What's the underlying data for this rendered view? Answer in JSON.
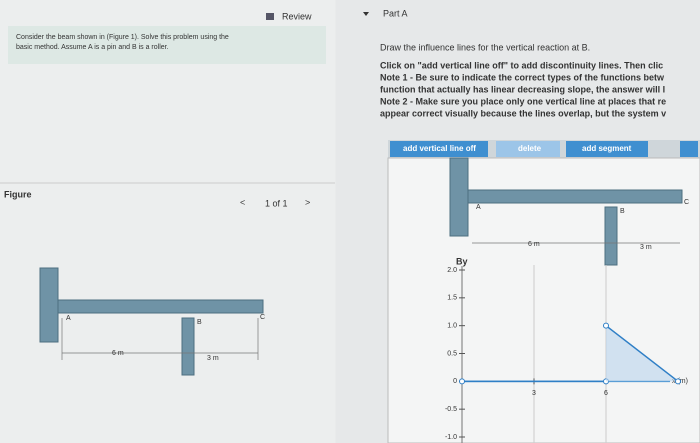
{
  "review": "Review",
  "problem": {
    "lines": [
      "Consider the beam shown in (Figure 1). Solve this problem using the",
      "basic method. Assume A is a pin and B is a roller."
    ]
  },
  "figure": {
    "heading": "Figure",
    "pager": "1 of 1",
    "labels": {
      "a": "A",
      "b": "B",
      "c": "C",
      "span1": "6 m",
      "span2": "3 m"
    }
  },
  "part": {
    "title": "Part A",
    "prompt": "Draw the influence lines for the vertical reaction at B.",
    "instructions": [
      "Click on \"add vertical line off\" to add discontinuity lines. Then clic",
      "Note 1 - Be sure to indicate the correct types of the functions betw",
      "function that actually has linear decreasing slope, the answer will l",
      "Note 2 - Make sure you place only one vertical line at places that re",
      "appear correct visually because the lines overlap, but the system v"
    ]
  },
  "toolbar": {
    "vertical": "add vertical line off",
    "delete": "delete",
    "segment": "add segment"
  },
  "graph": {
    "ylabel": "By",
    "xlabel": "x (m)",
    "yticks": [
      {
        "value": 2.0,
        "label": "2.0"
      },
      {
        "value": 1.5,
        "label": "1.5"
      },
      {
        "value": 1.0,
        "label": "1.0"
      },
      {
        "value": 0.5,
        "label": "0.5"
      },
      0,
      {
        "value": -0.5,
        "label": "-0.5"
      },
      {
        "value": -1.0,
        "label": "-1.0"
      }
    ],
    "xticks": [
      3,
      6
    ],
    "segments": [
      {
        "x": [
          0,
          6
        ],
        "y": [
          0,
          0
        ]
      },
      {
        "x": [
          6,
          9
        ],
        "y": [
          1,
          0
        ]
      }
    ]
  }
}
